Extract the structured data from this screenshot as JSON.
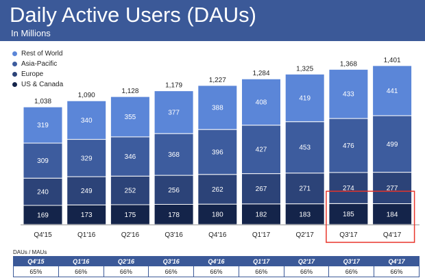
{
  "header": {
    "title": "Daily Active Users (DAUs)",
    "subtitle": "In Millions"
  },
  "colors": {
    "header_bg": "#3b5998",
    "us_canada": "#14244a",
    "europe": "#2c4378",
    "asia_pacific": "#3d5c9e",
    "rest_of_world": "#5b86d8",
    "highlight_box": "#e8342a"
  },
  "chart_data": {
    "type": "bar",
    "stacked": true,
    "categories": [
      "Q4'15",
      "Q1'16",
      "Q2'16",
      "Q3'16",
      "Q4'16",
      "Q1'17",
      "Q2'17",
      "Q3'17",
      "Q4'17"
    ],
    "series": [
      {
        "name": "US & Canada",
        "values": [
          169,
          173,
          175,
          178,
          180,
          182,
          183,
          185,
          184
        ]
      },
      {
        "name": "Europe",
        "values": [
          240,
          249,
          252,
          256,
          262,
          267,
          271,
          274,
          277
        ]
      },
      {
        "name": "Asia-Pacific",
        "values": [
          309,
          329,
          346,
          368,
          396,
          427,
          453,
          476,
          499
        ]
      },
      {
        "name": "Rest of World",
        "values": [
          319,
          340,
          355,
          377,
          388,
          408,
          419,
          433,
          441
        ]
      }
    ],
    "totals": [
      "1,038",
      "1,090",
      "1,128",
      "1,179",
      "1,227",
      "1,284",
      "1,325",
      "1,368",
      "1,401"
    ],
    "legend": {
      "position": "top-left",
      "order": [
        "Rest of World",
        "Asia-Pacific",
        "Europe",
        "US & Canada"
      ]
    },
    "highlight": {
      "categories": [
        "Q3'17",
        "Q4'17"
      ],
      "series": "US & Canada"
    },
    "grid": false
  },
  "dau_mau": {
    "label": "DAUs / MAUs",
    "quarters": [
      "Q4'15",
      "Q1'16",
      "Q2'16",
      "Q3'16",
      "Q4'16",
      "Q1'17",
      "Q2'17",
      "Q3'17",
      "Q4'17"
    ],
    "values": [
      "65%",
      "66%",
      "66%",
      "66%",
      "66%",
      "66%",
      "66%",
      "66%",
      "66%"
    ]
  }
}
